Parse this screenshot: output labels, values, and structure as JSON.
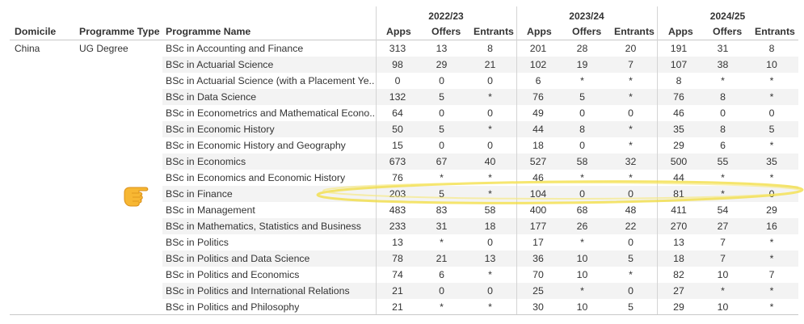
{
  "header": {
    "years": [
      "2022/23",
      "2023/24",
      "2024/25"
    ],
    "domicile": "Domicile",
    "programme_type": "Programme Type",
    "programme_name": "Programme Name",
    "apps": "Apps",
    "offers": "Offers",
    "entrants": "Entrants"
  },
  "group": {
    "domicile": "China",
    "programme_type": "UG Degree"
  },
  "rows": [
    {
      "name": "BSc in Accounting and Finance",
      "v": [
        "313",
        "13",
        "8",
        "201",
        "28",
        "20",
        "191",
        "31",
        "8"
      ]
    },
    {
      "name": "BSc in Actuarial Science",
      "v": [
        "98",
        "29",
        "21",
        "102",
        "19",
        "7",
        "107",
        "38",
        "10"
      ]
    },
    {
      "name": "BSc in Actuarial Science (with a Placement Ye..",
      "v": [
        "0",
        "0",
        "0",
        "6",
        "*",
        "*",
        "8",
        "*",
        "*"
      ]
    },
    {
      "name": "BSc in Data Science",
      "v": [
        "132",
        "5",
        "*",
        "76",
        "5",
        "*",
        "76",
        "8",
        "*"
      ]
    },
    {
      "name": "BSc in Econometrics and Mathematical Econo..",
      "v": [
        "64",
        "0",
        "0",
        "49",
        "0",
        "0",
        "46",
        "0",
        "0"
      ]
    },
    {
      "name": "BSc in Economic History",
      "v": [
        "50",
        "5",
        "*",
        "44",
        "8",
        "*",
        "35",
        "8",
        "5"
      ]
    },
    {
      "name": "BSc in Economic History and Geography",
      "v": [
        "15",
        "0",
        "0",
        "18",
        "0",
        "*",
        "29",
        "6",
        "*"
      ]
    },
    {
      "name": "BSc in Economics",
      "v": [
        "673",
        "67",
        "40",
        "527",
        "58",
        "32",
        "500",
        "55",
        "35"
      ]
    },
    {
      "name": "BSc in Economics and Economic History",
      "v": [
        "76",
        "*",
        "*",
        "46",
        "*",
        "*",
        "44",
        "*",
        "*"
      ]
    },
    {
      "name": "BSc in Finance",
      "v": [
        "203",
        "5",
        "*",
        "104",
        "0",
        "0",
        "81",
        "*",
        "0"
      ]
    },
    {
      "name": "BSc in Management",
      "v": [
        "483",
        "83",
        "58",
        "400",
        "68",
        "48",
        "411",
        "54",
        "29"
      ]
    },
    {
      "name": "BSc in Mathematics, Statistics and Business",
      "v": [
        "233",
        "31",
        "18",
        "177",
        "26",
        "22",
        "270",
        "27",
        "16"
      ]
    },
    {
      "name": "BSc in Politics",
      "v": [
        "13",
        "*",
        "0",
        "17",
        "*",
        "0",
        "13",
        "7",
        "*"
      ]
    },
    {
      "name": "BSc in Politics and Data Science",
      "v": [
        "78",
        "21",
        "13",
        "36",
        "10",
        "5",
        "18",
        "7",
        "*"
      ]
    },
    {
      "name": "BSc in Politics and Economics",
      "v": [
        "74",
        "6",
        "*",
        "70",
        "10",
        "*",
        "82",
        "10",
        "7"
      ]
    },
    {
      "name": "BSc in Politics and International Relations",
      "v": [
        "21",
        "0",
        "0",
        "25",
        "*",
        "0",
        "27",
        "*",
        "*"
      ]
    },
    {
      "name": "BSc in Politics and Philosophy",
      "v": [
        "21",
        "*",
        "*",
        "30",
        "10",
        "5",
        "29",
        "10",
        "*"
      ]
    }
  ],
  "colors": {
    "highlight": "#f2dc3c",
    "band": "#f3f3f3",
    "grid": "#d4d4d4"
  },
  "annotation": {
    "icon": "pointing-hand-icon",
    "highlighted_row": "BSc in Finance"
  }
}
